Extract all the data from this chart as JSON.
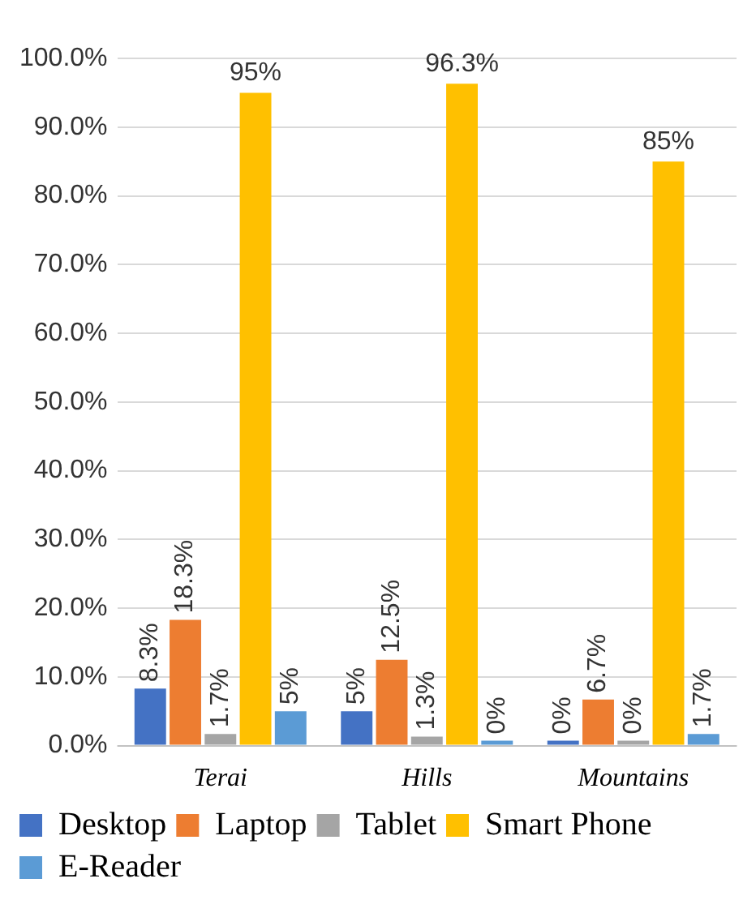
{
  "chart_data": {
    "type": "bar",
    "categories": [
      "Terai",
      "Hills",
      "Mountains"
    ],
    "series": [
      {
        "name": "Desktop",
        "color": "#4472c4",
        "values": [
          8.3,
          5,
          0
        ],
        "value_labels": [
          "8.3%",
          "5%",
          "0%"
        ]
      },
      {
        "name": "Laptop",
        "color": "#ed7d31",
        "values": [
          18.3,
          12.5,
          6.7
        ],
        "value_labels": [
          "18.3%",
          "12.5%",
          "6.7%"
        ]
      },
      {
        "name": "Tablet",
        "color": "#a5a5a5",
        "values": [
          1.7,
          1.3,
          0
        ],
        "value_labels": [
          "1.7%",
          "1.3%",
          "0%"
        ]
      },
      {
        "name": "Smart Phone",
        "color": "#ffc000",
        "values": [
          95,
          96.3,
          85
        ],
        "value_labels": [
          "95%",
          "96.3%",
          "85%"
        ]
      },
      {
        "name": "E-Reader",
        "color": "#5b9bd5",
        "values": [
          5,
          0,
          1.7
        ],
        "value_labels": [
          "5%",
          "0%",
          "1.7%"
        ]
      }
    ],
    "ylim": [
      0,
      100
    ],
    "yticks": [
      {
        "value": 0,
        "label": "0.0%"
      },
      {
        "value": 10,
        "label": "10.0%"
      },
      {
        "value": 20,
        "label": "20.0%"
      },
      {
        "value": 30,
        "label": "30.0%"
      },
      {
        "value": 40,
        "label": "40.0%"
      },
      {
        "value": 50,
        "label": "50.0%"
      },
      {
        "value": 60,
        "label": "60.0%"
      },
      {
        "value": 70,
        "label": "70.0%"
      },
      {
        "value": 80,
        "label": "80.0%"
      },
      {
        "value": 90,
        "label": "90.0%"
      },
      {
        "value": 100,
        "label": "100.0%"
      }
    ],
    "grid": "y",
    "legend": "bottom"
  }
}
